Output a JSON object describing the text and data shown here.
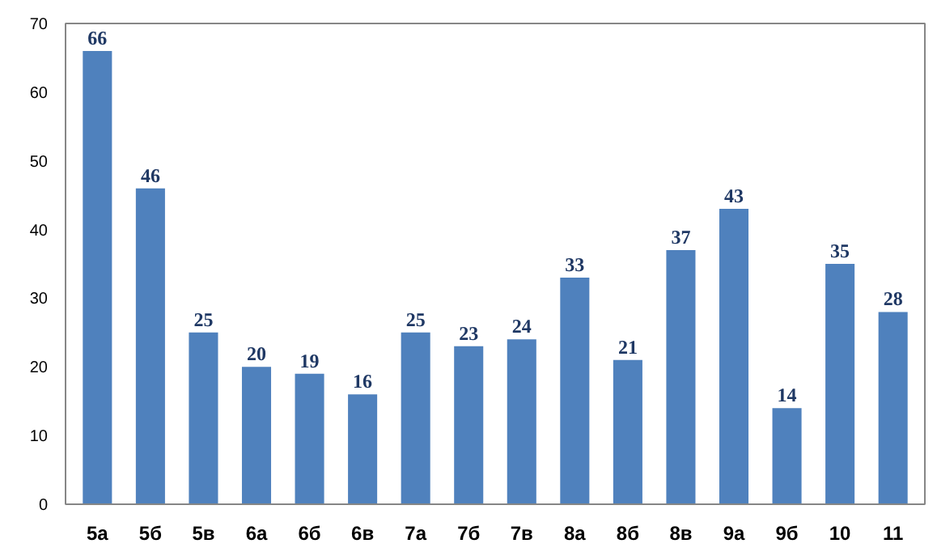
{
  "chart_data": {
    "type": "bar",
    "categories": [
      "5а",
      "5б",
      "5в",
      "6а",
      "6б",
      "6в",
      "7а",
      "7б",
      "7в",
      "8а",
      "8б",
      "8в",
      "9а",
      "9б",
      "10",
      "11"
    ],
    "values": [
      66,
      46,
      25,
      20,
      19,
      16,
      25,
      23,
      24,
      33,
      21,
      37,
      43,
      14,
      35,
      28
    ],
    "color": "#4f81bd",
    "ylim": [
      0,
      70
    ],
    "yticks": [
      0,
      10,
      20,
      30,
      40,
      50,
      60,
      70
    ],
    "grid": false,
    "data_labels": true
  }
}
